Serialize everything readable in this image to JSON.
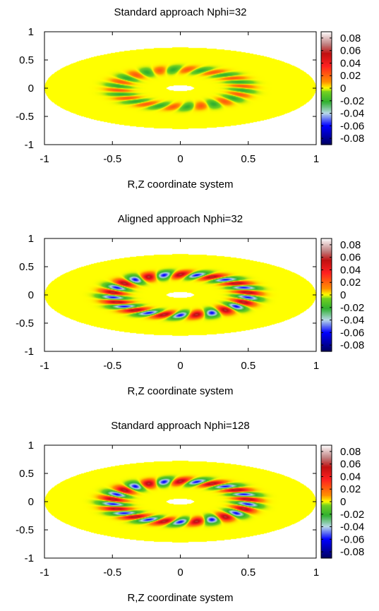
{
  "chart_data": [
    {
      "type": "heatmap",
      "title": "Standard approach Nphi=32",
      "xlabel": "R,Z coordinate system",
      "ylabel": "",
      "xlim": [
        -1,
        1
      ],
      "ylim": [
        -1,
        1
      ],
      "x_ticks": [
        "-1",
        "-0.5",
        "0",
        "0.5",
        "1"
      ],
      "y_ticks": [
        "1",
        "0.5",
        "0",
        "-0.5",
        "-1"
      ],
      "colorbar": {
        "range": [
          -0.09,
          0.09
        ],
        "ticks": [
          "0.08",
          "0.06",
          "0.04",
          "0.02",
          "0",
          "-0.02",
          "-0.04",
          "-0.06",
          "-0.08"
        ],
        "tick_values": [
          0.08,
          0.06,
          0.04,
          0.02,
          0,
          -0.02,
          -0.04,
          -0.06,
          -0.08
        ]
      },
      "domain": {
        "outer_rx": 1.0,
        "outer_ry": 0.72,
        "hole_rx": 0.1,
        "hole_ry": 0.05
      },
      "mode_ring": {
        "r": 0.46,
        "count": 14,
        "amplitude": 0.022,
        "background": 0
      }
    },
    {
      "type": "heatmap",
      "title": "Aligned approach Nphi=32",
      "xlabel": "R,Z coordinate system",
      "ylabel": "",
      "xlim": [
        -1,
        1
      ],
      "ylim": [
        -1,
        1
      ],
      "x_ticks": [
        "-1",
        "-0.5",
        "0",
        "0.5",
        "1"
      ],
      "y_ticks": [
        "1",
        "0.5",
        "0",
        "-0.5",
        "-1"
      ],
      "colorbar": {
        "range": [
          -0.09,
          0.09
        ],
        "ticks": [
          "0.08",
          "0.06",
          "0.04",
          "0.02",
          "0",
          "-0.02",
          "-0.04",
          "-0.06",
          "-0.08"
        ],
        "tick_values": [
          0.08,
          0.06,
          0.04,
          0.02,
          0,
          -0.02,
          -0.04,
          -0.06,
          -0.08
        ]
      },
      "domain": {
        "outer_rx": 1.0,
        "outer_ry": 0.72,
        "hole_rx": 0.1,
        "hole_ry": 0.05
      },
      "mode_ring": {
        "r": 0.5,
        "count": 13,
        "amplitude": 0.06,
        "background": 0
      }
    },
    {
      "type": "heatmap",
      "title": "Standard approach Nphi=128",
      "xlabel": "R,Z coordinate system",
      "ylabel": "",
      "xlim": [
        -1,
        1
      ],
      "ylim": [
        -1,
        1
      ],
      "x_ticks": [
        "-1",
        "-0.5",
        "0",
        "0.5",
        "1"
      ],
      "y_ticks": [
        "1",
        "0.5",
        "0",
        "-0.5",
        "-1"
      ],
      "colorbar": {
        "range": [
          -0.09,
          0.09
        ],
        "ticks": [
          "0.08",
          "0.06",
          "0.04",
          "0.02",
          "0",
          "-0.02",
          "-0.04",
          "-0.06",
          "-0.08"
        ],
        "tick_values": [
          0.08,
          0.06,
          0.04,
          0.02,
          0,
          -0.02,
          -0.04,
          -0.06,
          -0.08
        ]
      },
      "domain": {
        "outer_rx": 1.0,
        "outer_ry": 0.72,
        "hole_rx": 0.1,
        "hole_ry": 0.05
      },
      "mode_ring": {
        "r": 0.5,
        "count": 13,
        "amplitude": 0.06,
        "background": 0
      }
    }
  ],
  "colors": {
    "background": "#ffff00",
    "colormap": [
      [
        -0.09,
        "#000060"
      ],
      [
        -0.06,
        "#0000ff"
      ],
      [
        -0.04,
        "#b8d8e8"
      ],
      [
        -0.022,
        "#30b030"
      ],
      [
        -0.006,
        "#70d020"
      ],
      [
        0,
        "#ffff00"
      ],
      [
        0.01,
        "#ff9000"
      ],
      [
        0.035,
        "#ff2020"
      ],
      [
        0.055,
        "#c01010"
      ],
      [
        0.07,
        "#c08080"
      ],
      [
        0.09,
        "#ffffff"
      ]
    ]
  }
}
